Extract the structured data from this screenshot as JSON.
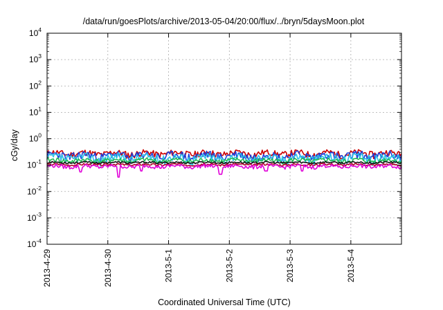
{
  "chart_data": {
    "type": "line",
    "title": "/data/run/goesPlots/archive/2013-05-04/20:00/flux/../bryn/5daysMoon.plot",
    "xlabel": "Coordinated Universal Time (UTC)",
    "ylabel": "cGy/day",
    "y_scale": "log",
    "ylim": [
      0.0001,
      10000
    ],
    "y_ticks": [
      {
        "base": "10",
        "exp": "4",
        "value": 10000
      },
      {
        "base": "10",
        "exp": "3",
        "value": 1000
      },
      {
        "base": "10",
        "exp": "2",
        "value": 100
      },
      {
        "base": "10",
        "exp": "1",
        "value": 10
      },
      {
        "base": "10",
        "exp": "0",
        "value": 1
      },
      {
        "base": "10",
        "exp": "-1",
        "value": 0.1
      },
      {
        "base": "10",
        "exp": "-2",
        "value": 0.01
      },
      {
        "base": "10",
        "exp": "-3",
        "value": 0.001
      },
      {
        "base": "10",
        "exp": "-4",
        "value": 0.0001
      }
    ],
    "xlim": [
      "2013-04-29 00:00",
      "2013-05-04 20:00"
    ],
    "x_ticks": [
      "2013-4-29",
      "2013-4-30",
      "2013-5-1",
      "2013-5-2",
      "2013-5-3",
      "2013-5-4"
    ],
    "grid": true,
    "legend": "none",
    "series": [
      {
        "color": "#cc0000",
        "base": 0.28,
        "variability": 0.08,
        "seed": 11
      },
      {
        "color": "#1f3fd9",
        "base": 0.23,
        "variability": 0.09,
        "seed": 23
      },
      {
        "color": "#2ec4e6",
        "base": 0.19,
        "variability": 0.07,
        "seed": 37
      },
      {
        "color": "#22bb55",
        "base": 0.15,
        "variability": 0.03,
        "seed": 41
      },
      {
        "color": "#111111",
        "base": 0.125,
        "variability": 0.01,
        "seed": 53
      },
      {
        "color": "#b2002a",
        "base": 0.105,
        "variability": 0.01,
        "seed": 67
      },
      {
        "color": "#e000d8",
        "base": 0.09,
        "variability": 0.015,
        "seed": 79,
        "dips": [
          [
            1.18,
            0.035
          ],
          [
            1.55,
            0.06
          ],
          [
            2.85,
            0.045
          ],
          [
            0.55,
            0.055
          ],
          [
            3.6,
            0.06
          ],
          [
            4.2,
            0.06
          ]
        ]
      }
    ]
  }
}
